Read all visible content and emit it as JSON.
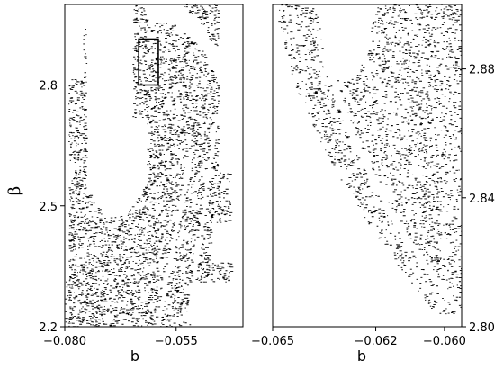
{
  "chart_data": [
    {
      "type": "scatter",
      "panel": "left",
      "xlabel": "b",
      "ylabel": "β",
      "xlim": [
        -0.08,
        -0.04
      ],
      "ylim": [
        2.2,
        3.0
      ],
      "xtick_values": [
        -0.08,
        -0.055
      ],
      "xtick_labels": [
        "−0.080",
        "−0.055"
      ],
      "ytick_values": [
        2.2,
        2.5,
        2.8
      ],
      "ytick_labels": [
        "2.2",
        "2.5",
        "2.8"
      ],
      "zoom_box": {
        "x": [
          -0.0634,
          -0.059
        ],
        "y": [
          2.8,
          2.914
        ]
      }
    },
    {
      "type": "scatter",
      "panel": "right",
      "xlabel": "b",
      "xlim": [
        -0.065,
        -0.0595
      ],
      "ylim": [
        2.8,
        2.9
      ],
      "xtick_values": [
        -0.065,
        -0.062,
        -0.06
      ],
      "xtick_labels": [
        "−0.065",
        "−0.062",
        "−0.060"
      ],
      "ytick_values": [
        2.8,
        2.84,
        2.88
      ],
      "ytick_labels": [
        "2.80",
        "2.84",
        "2.88"
      ]
    }
  ],
  "colors": {
    "points": "#000000",
    "background": "#ffffff"
  }
}
